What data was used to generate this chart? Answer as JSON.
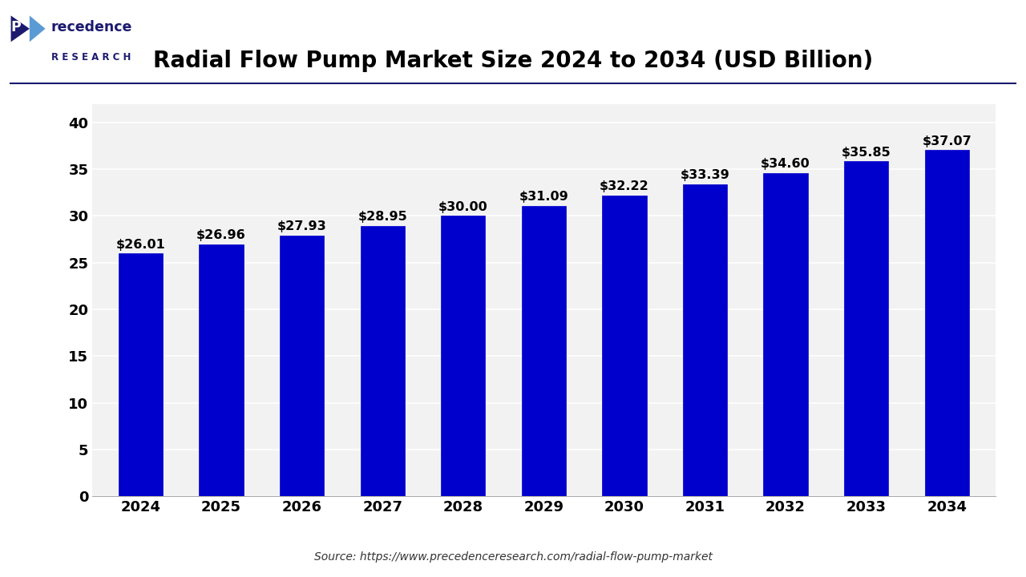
{
  "title": "Radial Flow Pump Market Size 2024 to 2034 (USD Billion)",
  "years": [
    2024,
    2025,
    2026,
    2027,
    2028,
    2029,
    2030,
    2031,
    2032,
    2033,
    2034
  ],
  "values": [
    26.01,
    26.96,
    27.93,
    28.95,
    30.0,
    31.09,
    32.22,
    33.39,
    34.6,
    35.85,
    37.07
  ],
  "bar_color": "#0000CD",
  "bar_edge_color": "#0000CD",
  "ylim": [
    0,
    42
  ],
  "yticks": [
    0,
    5,
    10,
    15,
    20,
    25,
    30,
    35,
    40
  ],
  "title_fontsize": 20,
  "tick_fontsize": 13,
  "label_fontsize": 12,
  "source_text": "Source: https://www.precedenceresearch.com/radial-flow-pump-market",
  "background_color": "#ffffff",
  "plot_bg_color": "#f2f2f2",
  "grid_color": "#ffffff",
  "logo_color": "#1a1a6e",
  "logo_accent": "#5b9bd5",
  "separator_color": "#1a1a6e"
}
